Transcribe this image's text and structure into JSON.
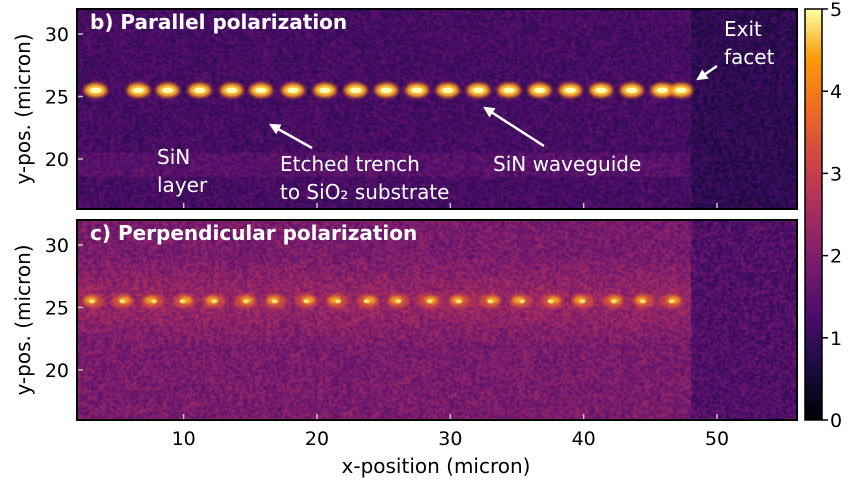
{
  "chart_data": [
    {
      "type": "heatmap",
      "title": "b) Parallel polarization",
      "xlabel": "",
      "ylabel": "y-pos. (micron)",
      "xlim": [
        2,
        56
      ],
      "ylim": [
        16,
        32
      ],
      "yticks": [
        20,
        25,
        30
      ],
      "colormap": "inferno",
      "waveguide_y": 25.5,
      "exit_facet_x": 48,
      "bright_spots_x": [
        3.4,
        6.6,
        8.8,
        11.2,
        13.6,
        15.8,
        18.2,
        20.6,
        22.9,
        25.2,
        27.5,
        29.8,
        32.1,
        34.4,
        36.7,
        39.0,
        41.3,
        43.6,
        45.9,
        47.3
      ],
      "annotations": [
        {
          "id": "exit-facet",
          "lines": [
            "Exit",
            "facet"
          ]
        },
        {
          "id": "sin-layer",
          "lines": [
            "SiN",
            "layer"
          ]
        },
        {
          "id": "etched-trench",
          "lines": [
            "Etched trench",
            "to SiO₂ substrate"
          ]
        },
        {
          "id": "sin-waveguide",
          "lines": [
            "SiN waveguide"
          ]
        }
      ]
    },
    {
      "type": "heatmap",
      "title": "c) Perpendicular polarization",
      "xlabel": "x-position (micron)",
      "ylabel": "y-pos. (micron)",
      "xlim": [
        2,
        56
      ],
      "ylim": [
        16,
        32
      ],
      "xticks": [
        10,
        20,
        30,
        40,
        50
      ],
      "yticks": [
        20,
        25,
        30
      ],
      "colormap": "inferno",
      "waveguide_y": 25.5,
      "exit_facet_x": 48,
      "bright_spots_x": [
        3.2,
        5.4,
        7.7,
        10.0,
        12.3,
        14.6,
        16.9,
        19.2,
        21.5,
        23.8,
        26.1,
        28.4,
        30.7,
        33.0,
        35.3,
        37.6,
        39.9,
        42.2,
        44.5,
        46.6
      ]
    }
  ],
  "colorbar": {
    "range": [
      0,
      5
    ],
    "ticks": [
      "0",
      "1",
      "2",
      "3",
      "4",
      "5"
    ]
  }
}
